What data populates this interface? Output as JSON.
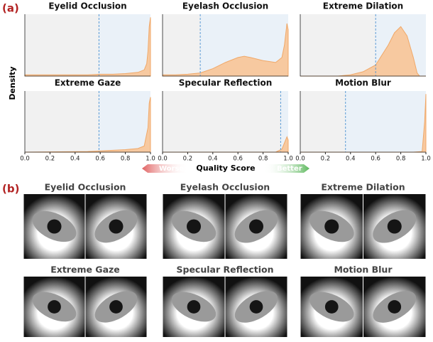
{
  "chart_data": [
    {
      "type": "area",
      "title": "Eyelid Occlusion",
      "threshold": 0.59,
      "color": "#f7c9a0",
      "x": [
        0,
        0.1,
        0.2,
        0.3,
        0.4,
        0.5,
        0.6,
        0.7,
        0.8,
        0.85,
        0.9,
        0.95,
        0.97,
        0.98,
        0.99,
        1.0
      ],
      "values": [
        0.02,
        0.02,
        0.02,
        0.02,
        0.02,
        0.02,
        0.03,
        0.03,
        0.04,
        0.05,
        0.06,
        0.1,
        0.2,
        0.4,
        0.8,
        0.95
      ],
      "xlim": [
        0,
        1
      ],
      "ylim": [
        0,
        1
      ]
    },
    {
      "type": "area",
      "title": "Eyelash Occlusion",
      "threshold": 0.3,
      "color": "#f7c9a0",
      "x": [
        0,
        0.1,
        0.2,
        0.3,
        0.4,
        0.5,
        0.6,
        0.65,
        0.7,
        0.8,
        0.9,
        0.95,
        0.97,
        0.99,
        1.0
      ],
      "values": [
        0.02,
        0.02,
        0.03,
        0.05,
        0.12,
        0.22,
        0.3,
        0.32,
        0.3,
        0.25,
        0.22,
        0.3,
        0.5,
        0.85,
        0.75
      ],
      "xlim": [
        0,
        1
      ],
      "ylim": [
        0,
        1
      ]
    },
    {
      "type": "area",
      "title": "Extreme Dilation",
      "threshold": 0.6,
      "color": "#f7c9a0",
      "x": [
        0,
        0.3,
        0.4,
        0.5,
        0.6,
        0.7,
        0.75,
        0.8,
        0.85,
        0.9,
        0.93,
        0.95,
        1.0
      ],
      "values": [
        0,
        0,
        0.02,
        0.07,
        0.18,
        0.5,
        0.7,
        0.8,
        0.65,
        0.3,
        0.05,
        0,
        0
      ],
      "xlim": [
        0,
        1
      ],
      "ylim": [
        0,
        1
      ]
    },
    {
      "type": "area",
      "title": "Extreme Gaze",
      "threshold": 0.59,
      "color": "#f7c9a0",
      "x": [
        0,
        0.5,
        0.6,
        0.7,
        0.8,
        0.9,
        0.95,
        0.98,
        0.99,
        1.0
      ],
      "values": [
        0,
        0.01,
        0.02,
        0.03,
        0.04,
        0.06,
        0.1,
        0.4,
        0.8,
        0.9
      ],
      "xlim": [
        0,
        1
      ],
      "ylim": [
        0,
        1
      ],
      "xticks": [
        {
          "value": 0,
          "label": "0.0"
        },
        0.2,
        0.4,
        0.6,
        0.8,
        {
          "value": 1,
          "label": "1.0"
        }
      ]
    },
    {
      "type": "area",
      "title": "Specular Reflection",
      "threshold": 0.94,
      "color": "#f7c9a0",
      "x": [
        0,
        0.9,
        0.95,
        0.97,
        0.99,
        1.0
      ],
      "values": [
        0,
        0,
        0.05,
        0.15,
        0.25,
        0.2
      ],
      "xlim": [
        0,
        1
      ],
      "ylim": [
        0,
        1
      ],
      "xticks": [
        {
          "value": 0,
          "label": "0.0"
        },
        0.2,
        0.4,
        0.6,
        0.8,
        {
          "value": 1,
          "label": "1.0"
        }
      ]
    },
    {
      "type": "area",
      "title": "Motion Blur",
      "threshold": 0.36,
      "color": "#f7c9a0",
      "x": [
        0,
        0.9,
        0.97,
        0.99,
        1.0
      ],
      "values": [
        0,
        0,
        0.01,
        0.5,
        0.95
      ],
      "xlim": [
        0,
        1
      ],
      "ylim": [
        0,
        1
      ],
      "xticks": [
        {
          "value": 0,
          "label": "0.0"
        },
        0.2,
        0.4,
        0.6,
        0.8,
        {
          "value": 1,
          "label": "1.0"
        }
      ]
    }
  ],
  "figure": {
    "panel_a": "(a)",
    "panel_b": "(b)",
    "y_label": "Density",
    "x_label": "Quality Score",
    "worse": "Worse",
    "better": "Better",
    "images": [
      "Eyelid Occlusion",
      "Eyelash Occlusion",
      "Extreme Dilation",
      "Extreme Gaze",
      "Specular Reflection",
      "Motion Blur"
    ]
  }
}
